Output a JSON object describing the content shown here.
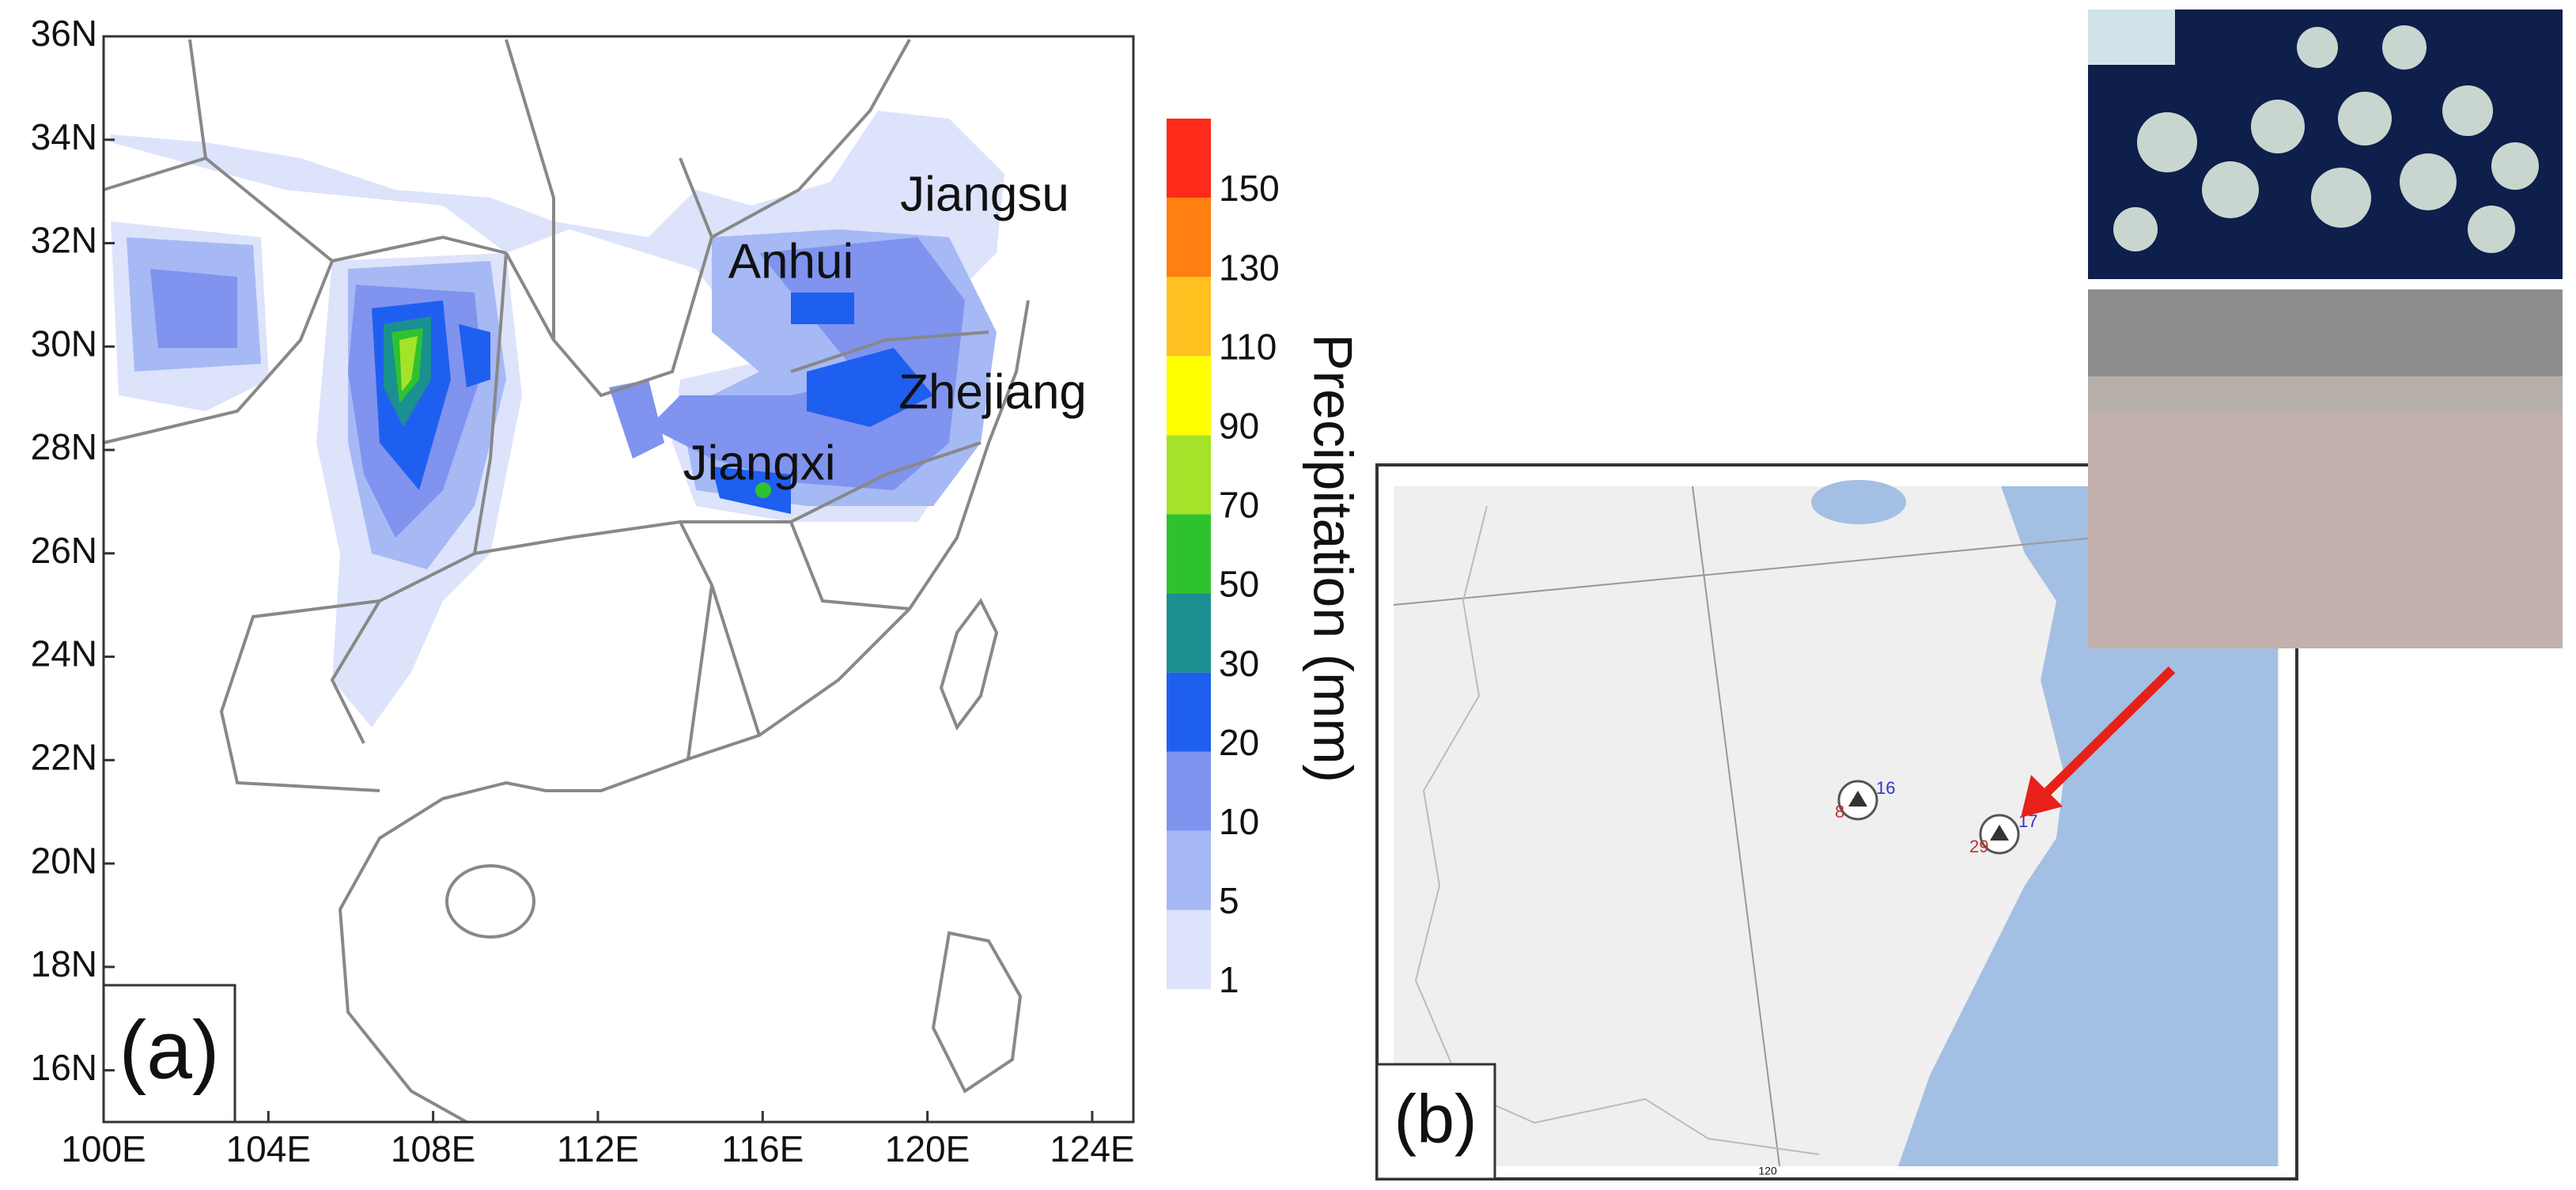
{
  "chart_data": {
    "type": "map",
    "panel_label": "(a)",
    "xticks": [
      {
        "value": 100,
        "label": "100E"
      },
      {
        "value": 104,
        "label": "104E"
      },
      {
        "value": 108,
        "label": "108E"
      },
      {
        "value": 112,
        "label": "112E"
      },
      {
        "value": 116,
        "label": "116E"
      },
      {
        "value": 120,
        "label": "120E"
      },
      {
        "value": 124,
        "label": "124E"
      }
    ],
    "yticks": [
      {
        "value": 16,
        "label": "16N"
      },
      {
        "value": 18,
        "label": "18N"
      },
      {
        "value": 20,
        "label": "20N"
      },
      {
        "value": 22,
        "label": "22N"
      },
      {
        "value": 24,
        "label": "24N"
      },
      {
        "value": 26,
        "label": "26N"
      },
      {
        "value": 28,
        "label": "28N"
      },
      {
        "value": 30,
        "label": "30N"
      },
      {
        "value": 32,
        "label": "32N"
      },
      {
        "value": 34,
        "label": "34N"
      },
      {
        "value": 36,
        "label": "36N"
      }
    ],
    "xlim": [
      100,
      125
    ],
    "ylim": [
      15,
      36
    ],
    "annotations": [
      "Jiangsu",
      "Anhui",
      "Zhejiang",
      "Jiangxi"
    ],
    "colorbar": {
      "label": "Precipitation (mm)",
      "levels": [
        1,
        5,
        10,
        20,
        30,
        50,
        70,
        90,
        110,
        130,
        150
      ],
      "colors": [
        "#dde3fb",
        "#a6b9f5",
        "#7f93ef",
        "#1f5ff0",
        "#1a9090",
        "#2fc22f",
        "#a5e32a",
        "#ffff00",
        "#ffc020",
        "#ff7f10",
        "#ff2a1a"
      ]
    }
  },
  "panel_b": {
    "panel_label": "(b)",
    "stations": [
      {
        "top": "16",
        "bottom": "8"
      },
      {
        "top": "17",
        "bottom": "29"
      }
    ],
    "axis_label": "120"
  }
}
